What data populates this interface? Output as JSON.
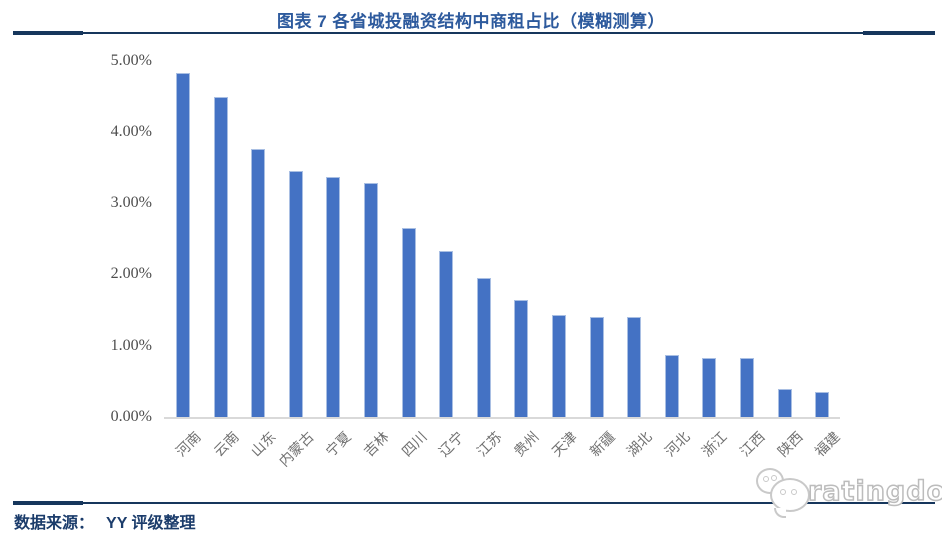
{
  "title": "图表 7 各省城投融资结构中商租占比（模糊测算）",
  "footer": {
    "source_label": "数据来源：",
    "source_value": "YY 评级整理"
  },
  "watermark": {
    "icon": "chat-bubbles-dog-logo",
    "text": "ratingdog"
  },
  "colors": {
    "title_blue": "#2d5a9d",
    "rule_navy": "#16365c",
    "bar_fill": "#4472c4",
    "bar_border": "#a9bfe3",
    "axis_line_gray": "#d9d9d9",
    "tick_text_gray": "#4d4d4d",
    "footer_navy": "#1b3c6b"
  },
  "chart_data": {
    "type": "bar",
    "title": "图表 7 各省城投融资结构中商租占比（模糊测算）",
    "categories": [
      "河南",
      "云南",
      "山东",
      "内蒙古",
      "宁夏",
      "吉林",
      "四川",
      "辽宁",
      "江苏",
      "贵州",
      "天津",
      "新疆",
      "湖北",
      "河北",
      "浙江",
      "江西",
      "陕西",
      "福建"
    ],
    "values": [
      4.84,
      4.5,
      3.77,
      3.47,
      3.38,
      3.29,
      2.67,
      2.34,
      1.97,
      1.65,
      1.44,
      1.42,
      1.41,
      0.88,
      0.84,
      0.84,
      0.41,
      0.36
    ],
    "unit": "%",
    "xlabel": "",
    "ylabel": "",
    "ylim": [
      0,
      5
    ],
    "ytick_labels": [
      "0.00%",
      "1.00%",
      "2.00%",
      "3.00%",
      "4.00%",
      "5.00%"
    ],
    "grid": false,
    "legend": false,
    "bar_color": "#4472c4",
    "sort_order": "descending"
  }
}
